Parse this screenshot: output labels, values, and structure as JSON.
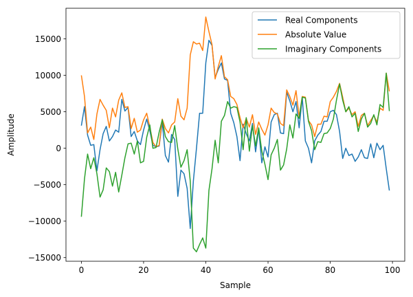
{
  "chart_data": {
    "type": "line",
    "title": "",
    "xlabel": "Sample",
    "ylabel": "Amplitude",
    "xlim": [
      -4.95,
      103.95
    ],
    "ylim": [
      -15500,
      19200
    ],
    "xticks": [
      0,
      20,
      40,
      60,
      80,
      100
    ],
    "yticks": [
      -15000,
      -10000,
      -5000,
      0,
      5000,
      10000,
      15000
    ],
    "xtick_labels": [
      "0",
      "20",
      "40",
      "60",
      "80",
      "100"
    ],
    "ytick_labels": [
      "−15000",
      "−10000",
      "−5000",
      "0",
      "5000",
      "10000",
      "15000"
    ],
    "grid": false,
    "legend": "top-right",
    "series": [
      {
        "name": "Real Components",
        "color": "#1f77b4",
        "values": [
          3100,
          5700,
          1800,
          400,
          500,
          -3100,
          -200,
          2000,
          3000,
          1000,
          1600,
          2500,
          2200,
          6700,
          5100,
          5600,
          1600,
          2300,
          1000,
          500,
          2500,
          4000,
          2400,
          400,
          200,
          300,
          3600,
          -1000,
          -1900,
          1900,
          1200,
          -6600,
          -3000,
          -3500,
          -5500,
          -11000,
          -4500,
          0,
          4800,
          4800,
          11700,
          14800,
          14100,
          9700,
          10800,
          11700,
          9500,
          9300,
          4800,
          3500,
          1600,
          -1700,
          3300,
          2000,
          1000,
          3400,
          -500,
          2600,
          -2000,
          200,
          -1200,
          3600,
          4600,
          4800,
          2100,
          2000,
          7700,
          6500,
          5000,
          6400,
          2800,
          7000,
          1000,
          0,
          -2000,
          1000,
          1800,
          2300,
          3700,
          3700,
          5000,
          5200,
          4600,
          2300,
          -1400,
          0,
          -1000,
          -800,
          -1800,
          -1200,
          -200,
          -1300,
          -1400,
          600,
          -1300,
          700,
          -200,
          400,
          -2800,
          -5800
        ]
      },
      {
        "name": "Absolute Value",
        "color": "#ff7f0e",
        "values": [
          10000,
          7100,
          2100,
          2900,
          1200,
          4700,
          6700,
          5900,
          5200,
          2800,
          5500,
          4300,
          6600,
          7600,
          5600,
          5700,
          2700,
          4100,
          2200,
          2500,
          3900,
          4800,
          2900,
          800,
          200,
          400,
          4000,
          2700,
          2100,
          3200,
          3600,
          6800,
          4400,
          3900,
          5500,
          12800,
          14600,
          14300,
          14400,
          13400,
          18000,
          16000,
          14200,
          9500,
          11200,
          12700,
          9800,
          9400,
          7100,
          6800,
          6000,
          4200,
          2800,
          4100,
          2900,
          4600,
          1900,
          3600,
          2600,
          1800,
          3200,
          5500,
          4900,
          4700,
          3400,
          3100,
          8000,
          7100,
          5900,
          7900,
          4300,
          7100,
          7000,
          3800,
          3200,
          1600,
          3300,
          3300,
          4400,
          4300,
          6400,
          7000,
          7800,
          8900,
          7000,
          5000,
          5500,
          4600,
          5000,
          3000,
          4500,
          4800,
          3100,
          3800,
          4500,
          3600,
          5500,
          5200,
          10300,
          7800
        ]
      },
      {
        "name": "Imaginary Components",
        "color": "#2ca02c",
        "values": [
          -9400,
          -4200,
          -800,
          -2800,
          -1300,
          -3500,
          -6700,
          -5700,
          -2700,
          -3200,
          -5200,
          -3300,
          -6000,
          -3700,
          -1300,
          600,
          700,
          -800,
          1000,
          -2000,
          -1800,
          1500,
          3200,
          0,
          100,
          2200,
          3900,
          1600,
          900,
          800,
          3100,
          -100,
          -2600,
          -1700,
          -200,
          -4500,
          -13700,
          -14200,
          -13200,
          -12300,
          -13700,
          -5800,
          -2800,
          1100,
          -2000,
          3700,
          4500,
          6400,
          5500,
          5700,
          5600,
          3600,
          -200,
          4200,
          -400,
          3100,
          300,
          2800,
          -400,
          -2200,
          -4300,
          -900,
          0,
          1200,
          -3000,
          -2300,
          -100,
          3200,
          1400,
          4700,
          4100,
          7000,
          6900,
          3700,
          2400,
          -200,
          900,
          800,
          2000,
          2100,
          2700,
          4000,
          6600,
          8800,
          6600,
          5000,
          5700,
          4300,
          4800,
          2300,
          4000,
          4800,
          2900,
          3400,
          4600,
          3200,
          6000,
          5600,
          10300,
          5100
        ]
      }
    ]
  }
}
